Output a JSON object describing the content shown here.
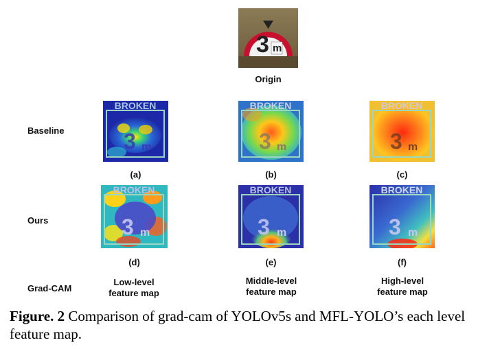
{
  "origin_label": "Origin",
  "row_labels": {
    "baseline": "Baseline",
    "ours": "Ours",
    "gradcam": "Grad-CAM"
  },
  "panel_labels": {
    "a": "(a)",
    "b": "(b)",
    "c": "(c)",
    "d": "(d)",
    "e": "(e)",
    "f": "(f)"
  },
  "level_labels": {
    "low_1": "Low-level",
    "low_2": "feature map",
    "mid_1": "Middle-level",
    "mid_2": "feature map",
    "high_1": "High-level",
    "high_2": "feature map"
  },
  "sign_text": {
    "broken": "BROKEN",
    "number": "3",
    "unit": "m"
  },
  "caption": {
    "figure_label": "Figure. 2",
    "text": "Comparison of grad-cam of YOLOv5s and MFL-YOLO’s each level feature map."
  }
}
